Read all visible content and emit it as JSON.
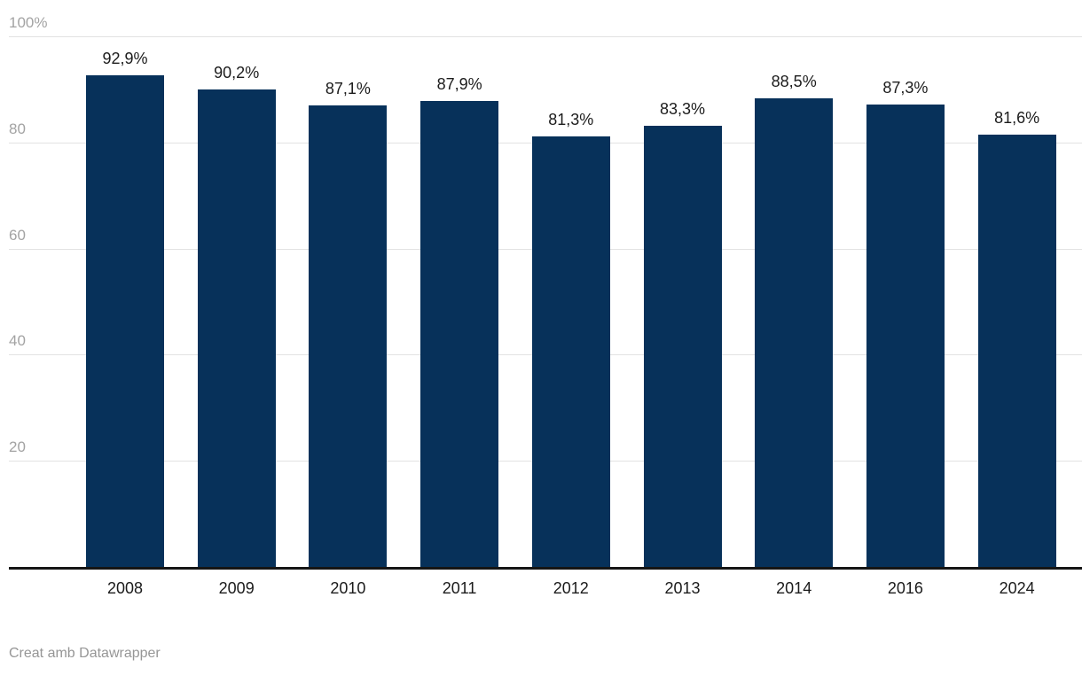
{
  "chart_data": {
    "type": "bar",
    "categories": [
      "2008",
      "2009",
      "2010",
      "2011",
      "2012",
      "2013",
      "2014",
      "2016",
      "2024"
    ],
    "values": [
      92.9,
      90.2,
      87.1,
      87.9,
      81.3,
      83.3,
      88.5,
      87.3,
      81.6
    ],
    "value_labels": [
      "92,9%",
      "90,2%",
      "87,1%",
      "87,9%",
      "81,3%",
      "83,3%",
      "88,5%",
      "87,3%",
      "81,6%"
    ],
    "title": "",
    "xlabel": "",
    "ylabel": "",
    "ylim": [
      0,
      100
    ],
    "yticks": [
      {
        "value": 100,
        "label": "100%"
      },
      {
        "value": 80,
        "label": "80"
      },
      {
        "value": 60,
        "label": "60"
      },
      {
        "value": 40,
        "label": "40"
      },
      {
        "value": 20,
        "label": "20"
      }
    ],
    "grid": true,
    "legend": false,
    "bar_color": "#07315a"
  },
  "colors": {
    "bar": "#07315a",
    "grid": "#e2e2e2",
    "axis": "#151515",
    "tick_label": "#a3a3a3",
    "value_label": "#1c1c1c",
    "x_label": "#1b1b1b",
    "footer_text": "#969696",
    "background": "#ffffff"
  },
  "footer": {
    "attribution": "Creat amb Datawrapper"
  }
}
